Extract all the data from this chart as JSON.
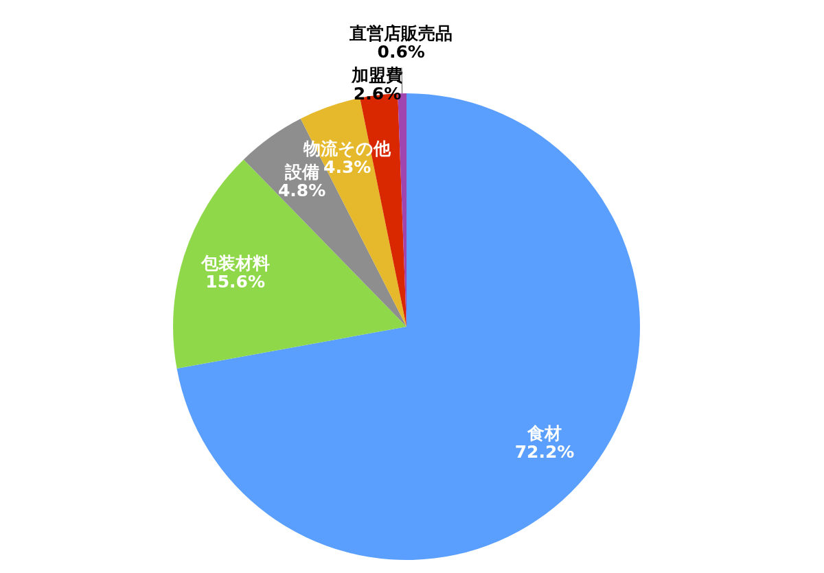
{
  "chart_data": {
    "type": "pie",
    "categories": [
      "食材",
      "包装材料",
      "設備",
      "物流その他",
      "加盟費",
      "直営店販売品"
    ],
    "values": [
      72.2,
      15.6,
      4.8,
      4.3,
      2.6,
      0.6
    ],
    "colors": [
      "#5a9ffd",
      "#8fd84a",
      "#8e8e8e",
      "#e6b92c",
      "#d92800",
      "#a044b0"
    ],
    "value_labels": [
      "72.2%",
      "15.6%",
      "4.8%",
      "4.3%",
      "2.6%",
      "0.6%"
    ]
  }
}
